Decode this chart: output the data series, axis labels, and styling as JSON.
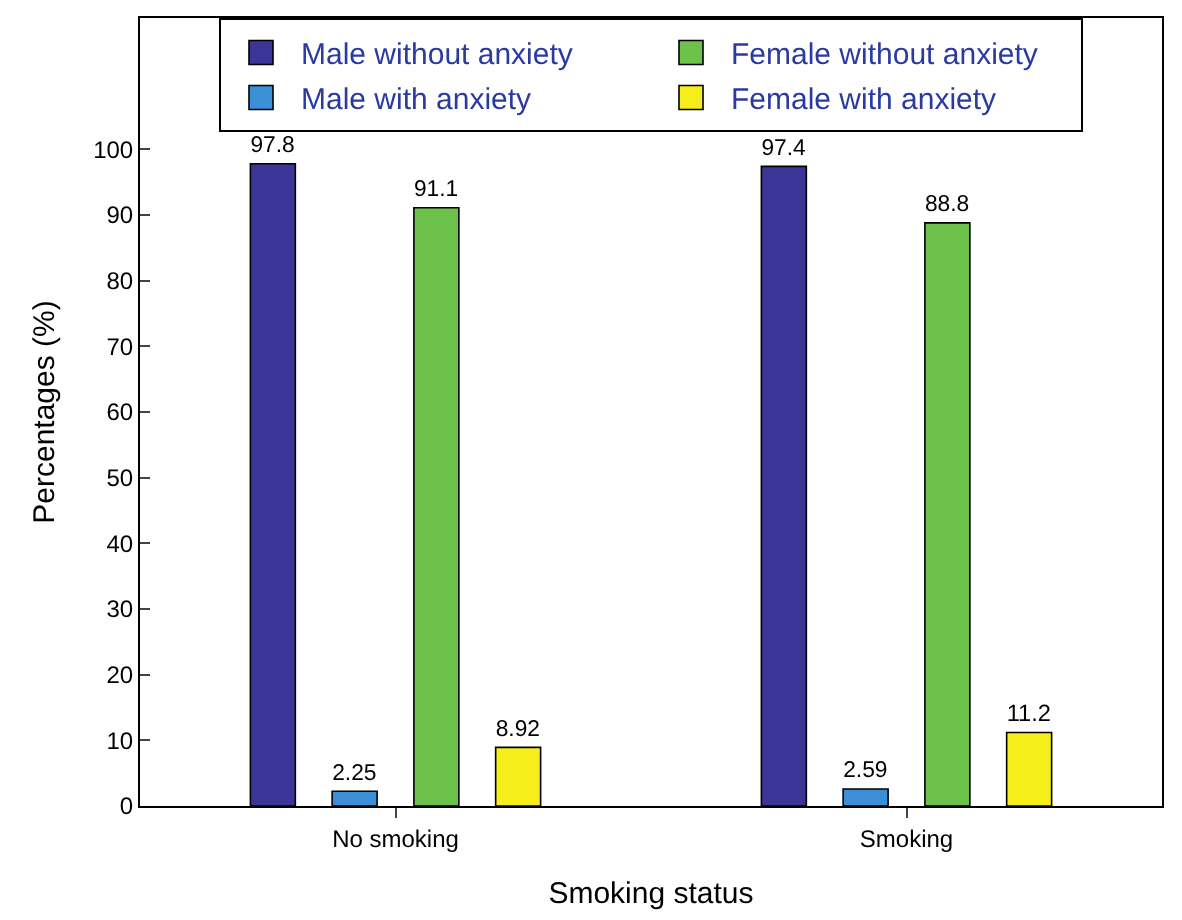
{
  "chart_data": {
    "type": "bar",
    "xlabel": "Smoking status",
    "ylabel": "Percentages (%)",
    "categories": [
      "No smoking",
      "Smoking"
    ],
    "series": [
      {
        "name": "Male without anxiety",
        "color": "#3a3597",
        "values": [
          97.8,
          97.4
        ]
      },
      {
        "name": "Male with anxiety",
        "color": "#3a8fd6",
        "values": [
          2.25,
          2.59
        ]
      },
      {
        "name": "Female without anxiety",
        "color": "#6cc24a",
        "values": [
          91.1,
          88.8
        ]
      },
      {
        "name": "Female with anxiety",
        "color": "#f5ee1a",
        "values": [
          8.92,
          11.2
        ]
      }
    ],
    "ylim": [
      0,
      120
    ],
    "yticks": [
      0,
      10,
      20,
      30,
      40,
      50,
      60,
      70,
      80,
      90,
      100
    ],
    "data_labels": true,
    "legend": "top"
  }
}
